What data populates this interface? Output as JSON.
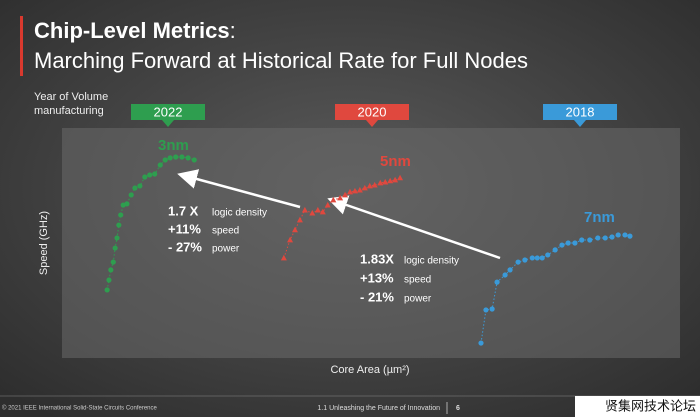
{
  "chart_data": {
    "type": "scatter",
    "title": "Chip-Level Metrics",
    "title_suffix": ":",
    "subtitle": "Marching Forward at Historical Rate for Full Nodes",
    "year_axis_label": "Year of Volume manufacturing",
    "y_label": "Speed (GHz)",
    "x_label": "Core Area (µm²)",
    "xlim": [
      0,
      100
    ],
    "ylim": [
      0,
      100
    ],
    "series": [
      {
        "name": "3nm",
        "year": "2022",
        "color": "#2e9e4f",
        "marker": "circle",
        "x": [
          7.3,
          7.6,
          7.9,
          8.3,
          8.6,
          8.9,
          9.2,
          9.5,
          9.9,
          10.5,
          11.2,
          11.8,
          12.6,
          13.4,
          14.2,
          15.0,
          15.9,
          16.7,
          17.5,
          18.4,
          19.4,
          20.4,
          21.4
        ],
        "values": [
          29.6,
          33.9,
          38.3,
          41.7,
          47.8,
          52.2,
          57.8,
          62.2,
          66.5,
          67.0,
          70.9,
          73.9,
          74.8,
          78.7,
          79.6,
          80.0,
          83.9,
          86.1,
          87.0,
          87.4,
          87.4,
          87.0,
          86.1
        ]
      },
      {
        "name": "5nm",
        "year": "2020",
        "color": "#e0483e",
        "marker": "triangle",
        "x": [
          35.9,
          36.9,
          37.7,
          38.5,
          39.3,
          40.5,
          41.4,
          42.2,
          43.0,
          43.9,
          45.0,
          45.8,
          46.6,
          47.4,
          48.2,
          49.0,
          49.8,
          50.6,
          51.5,
          52.3,
          53.1,
          53.9,
          54.7
        ],
        "values": [
          43.5,
          51.3,
          55.7,
          60.0,
          64.3,
          63.0,
          64.3,
          63.5,
          66.5,
          68.7,
          69.6,
          70.9,
          72.2,
          72.6,
          73.0,
          73.9,
          74.8,
          75.2,
          76.1,
          76.5,
          77.0,
          77.4,
          78.3
        ]
      },
      {
        "name": "7nm",
        "year": "2018",
        "color": "#3a9ad9",
        "marker": "circle",
        "x": [
          67.8,
          68.6,
          69.6,
          70.4,
          71.7,
          72.5,
          73.8,
          74.9,
          76.1,
          76.9,
          77.7,
          78.6,
          79.8,
          80.9,
          81.9,
          83.0,
          84.1,
          85.4,
          86.7,
          87.9,
          89.0,
          90.0,
          91.1,
          91.9
        ],
        "values": [
          6.5,
          20.9,
          21.3,
          33.0,
          36.1,
          38.3,
          41.7,
          42.6,
          43.5,
          43.5,
          43.5,
          44.8,
          47.0,
          49.1,
          50.0,
          50.0,
          51.3,
          51.3,
          52.2,
          52.2,
          52.6,
          53.5,
          53.5,
          53.0
        ]
      }
    ],
    "annotations": [
      {
        "factor": "1.7 X",
        "factor_text": "logic density",
        "speed": "+11%",
        "speed_text": "speed",
        "power": "- 27%",
        "power_text": "power"
      },
      {
        "factor": "1.83X",
        "factor_text": "logic density",
        "speed": "+13%",
        "speed_text": "speed",
        "power": "- 21%",
        "power_text": "power"
      }
    ]
  },
  "footer": {
    "left": "© 2021 IEEE International Solid-State Circuits Conference",
    "center": "1.1 Unleashing the Future of Innovation",
    "page": "6",
    "watermark": "贤集网技术论坛"
  }
}
